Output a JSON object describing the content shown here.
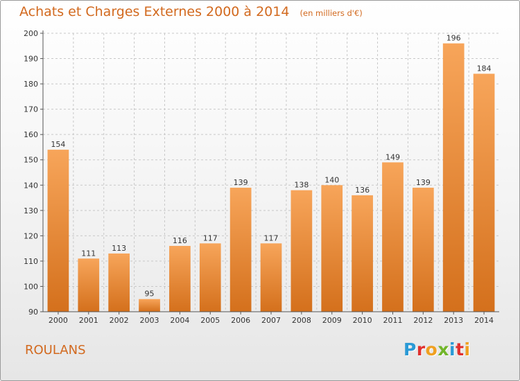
{
  "title": "Achats et Charges Externes 2000 à 2014",
  "subtitle": "(en milliers d'€)",
  "commune": "ROULANS",
  "brand": {
    "letters": [
      "P",
      "r",
      "o",
      "x",
      "i",
      "t",
      "i"
    ],
    "colors": [
      "#2a9ad6",
      "#e0312f",
      "#f0a020",
      "#72b62a",
      "#2a9ad6",
      "#e0312f",
      "#f0a020"
    ]
  },
  "colors": {
    "bar_top": "#f7a55a",
    "bar_bottom": "#d4701c",
    "text_accent": "#d2691e",
    "grid": "#c8c8c8",
    "axis": "#555555"
  },
  "chart_data": {
    "type": "bar",
    "categories": [
      "2000",
      "2001",
      "2002",
      "2003",
      "2004",
      "2005",
      "2006",
      "2007",
      "2008",
      "2009",
      "2010",
      "2011",
      "2012",
      "2013",
      "2014"
    ],
    "values": [
      154,
      111,
      113,
      95,
      116,
      117,
      139,
      117,
      138,
      140,
      136,
      149,
      139,
      196,
      184
    ],
    "data_labels": [
      "154",
      "111",
      "113",
      "95",
      "116",
      "117",
      "139",
      "117",
      "138",
      "140",
      "136",
      "149",
      "139",
      "196",
      "184"
    ],
    "yticks": [
      90,
      100,
      110,
      120,
      130,
      140,
      150,
      160,
      170,
      180,
      190,
      200
    ],
    "ylim": [
      90,
      200
    ],
    "grid": true,
    "legend": false
  }
}
